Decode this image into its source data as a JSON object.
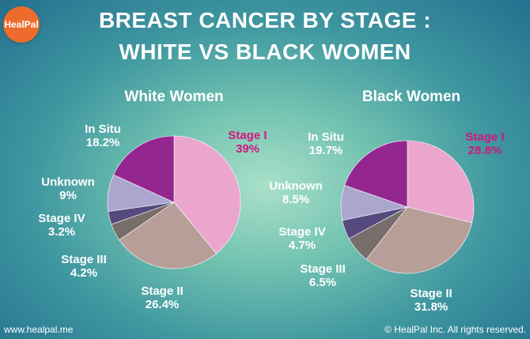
{
  "logo": {
    "text": "HealPal"
  },
  "header": {
    "title_line1": "BREAST CANCER BY STAGE :",
    "title_line2": "WHITE VS BLACK WOMEN"
  },
  "footer": {
    "website": "www.healpal.me",
    "copyright": "© HealPal Inc. All rights reserved."
  },
  "colors": {
    "Stage I": "#eba6ce",
    "Stage II": "#b89e98",
    "Stage III": "#786d6a",
    "Stage IV": "#544a7e",
    "Unknown": "#aba6ce",
    "In Situ": "#94278f",
    "accent": "#d2157e"
  },
  "chart_data": [
    {
      "type": "pie",
      "title": "White Women",
      "slices": [
        {
          "label": "Stage I",
          "value": 39,
          "display": "39%"
        },
        {
          "label": "Stage II",
          "value": 26.4,
          "display": "26.4%"
        },
        {
          "label": "Stage III",
          "value": 4.2,
          "display": "4.2%"
        },
        {
          "label": "Stage IV",
          "value": 3.2,
          "display": "3.2%"
        },
        {
          "label": "Unknown",
          "value": 9,
          "display": "9%"
        },
        {
          "label": "In Situ",
          "value": 18.2,
          "display": "18.2%"
        }
      ]
    },
    {
      "type": "pie",
      "title": "Black Women",
      "slices": [
        {
          "label": "Stage I",
          "value": 28.8,
          "display": "28.8%"
        },
        {
          "label": "Stage II",
          "value": 31.8,
          "display": "31.8%"
        },
        {
          "label": "Stage III",
          "value": 6.5,
          "display": "6.5%"
        },
        {
          "label": "Stage IV",
          "value": 4.7,
          "display": "4.7%"
        },
        {
          "label": "Unknown",
          "value": 8.5,
          "display": "8.5%"
        },
        {
          "label": "In Situ",
          "value": 19.7,
          "display": "19.7%"
        }
      ]
    }
  ]
}
